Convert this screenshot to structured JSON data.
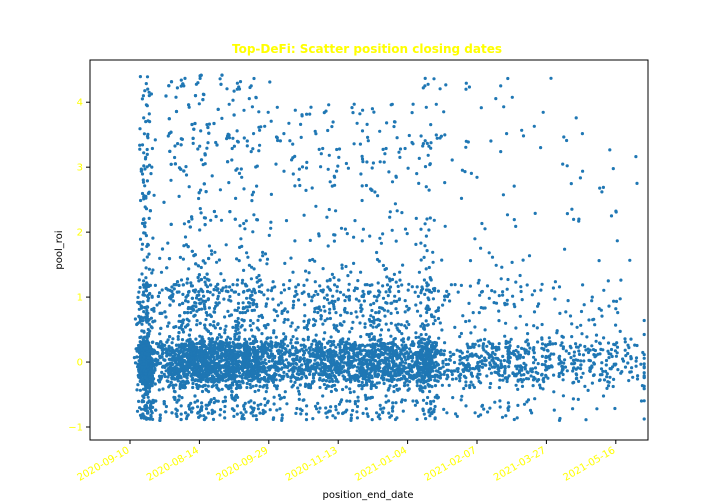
{
  "chart_data": {
    "type": "scatter",
    "title": "Top-DeFi: Scatter position closing dates",
    "xlabel": "position_end_date",
    "ylabel": "pool_roi",
    "x_ticks": [
      "2020-09-10",
      "2020-08-14",
      "2020-09-29",
      "2020-11-13",
      "2021-01-04",
      "2021-02-07",
      "2021-03-27",
      "2021-05-16"
    ],
    "y_ticks": [
      -1,
      0,
      1,
      2,
      3,
      4
    ],
    "ylim": [
      -1.2,
      4.65
    ],
    "xlim": [
      "2020-08-13",
      "2021-06-01"
    ],
    "grid": false,
    "colors": {
      "points": "#1f77b4",
      "title": "#ffff00",
      "ticks": "#ffff00",
      "axes": "#000000"
    },
    "clusters": [
      {
        "center": "2020-09-11",
        "spread_days": 2,
        "count": 700,
        "y_range": [
          -0.9,
          4.45
        ]
      },
      {
        "center": "2020-10-08",
        "spread_days": 12,
        "count": 1900,
        "y_range": [
          -0.9,
          4.45
        ]
      },
      {
        "center": "2020-11-05",
        "spread_days": 10,
        "count": 900,
        "y_range": [
          -0.9,
          4.4
        ]
      },
      {
        "center": "2020-12-14",
        "spread_days": 14,
        "count": 900,
        "y_range": [
          -0.9,
          4.0
        ]
      },
      {
        "center": "2021-01-16",
        "spread_days": 12,
        "count": 800,
        "y_range": [
          -0.9,
          4.0
        ]
      },
      {
        "center": "2021-02-06",
        "spread_days": 3,
        "count": 300,
        "y_range": [
          -0.9,
          4.45
        ]
      },
      {
        "center": "2021-03-15",
        "spread_days": 25,
        "count": 700,
        "y_range": [
          -0.9,
          4.4
        ]
      },
      {
        "center": "2021-05-10",
        "spread_days": 15,
        "count": 200,
        "y_range": [
          -0.9,
          3.3
        ]
      }
    ]
  }
}
